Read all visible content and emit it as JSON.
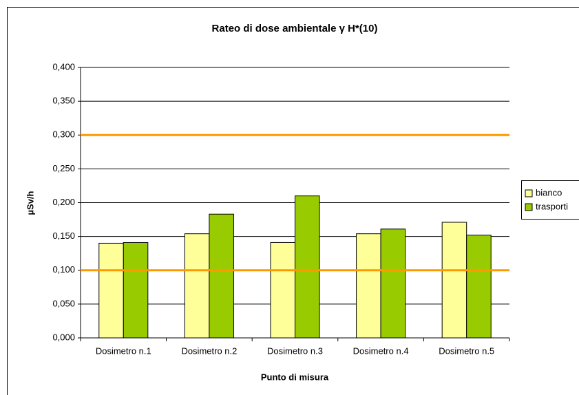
{
  "chart_data": {
    "type": "bar",
    "title": "Rateo di dose ambientale γ H*(10)",
    "x_label": "Punto di misura",
    "y_label": "µSv/h",
    "categories": [
      "Dosimetro n.1",
      "Dosimetro n.2",
      "Dosimetro n.3",
      "Dosimetro n.4",
      "Dosimetro n.5"
    ],
    "series": [
      {
        "name": "bianco",
        "color": "#ffff99",
        "values": [
          0.14,
          0.154,
          0.141,
          0.154,
          0.171
        ]
      },
      {
        "name": "trasporti",
        "color": "#99cc00",
        "values": [
          0.141,
          0.183,
          0.21,
          0.161,
          0.152
        ]
      }
    ],
    "reference_lines": [
      {
        "value": 0.3,
        "color": "#ff9900"
      },
      {
        "value": 0.1,
        "color": "#ff9900"
      }
    ],
    "ylim": [
      0,
      0.4
    ],
    "yticks": [
      {
        "value": 0,
        "label": "0,000"
      },
      {
        "value": 0.05,
        "label": "0,050"
      },
      {
        "value": 0.1,
        "label": "0,100"
      },
      {
        "value": 0.15,
        "label": "0,150"
      },
      {
        "value": 0.2,
        "label": "0,200"
      },
      {
        "value": 0.25,
        "label": "0,250"
      },
      {
        "value": 0.3,
        "label": "0,300"
      },
      {
        "value": 0.35,
        "label": "0,350"
      },
      {
        "value": 0.4,
        "label": "0,400"
      }
    ],
    "grid": true,
    "legend": "right"
  }
}
